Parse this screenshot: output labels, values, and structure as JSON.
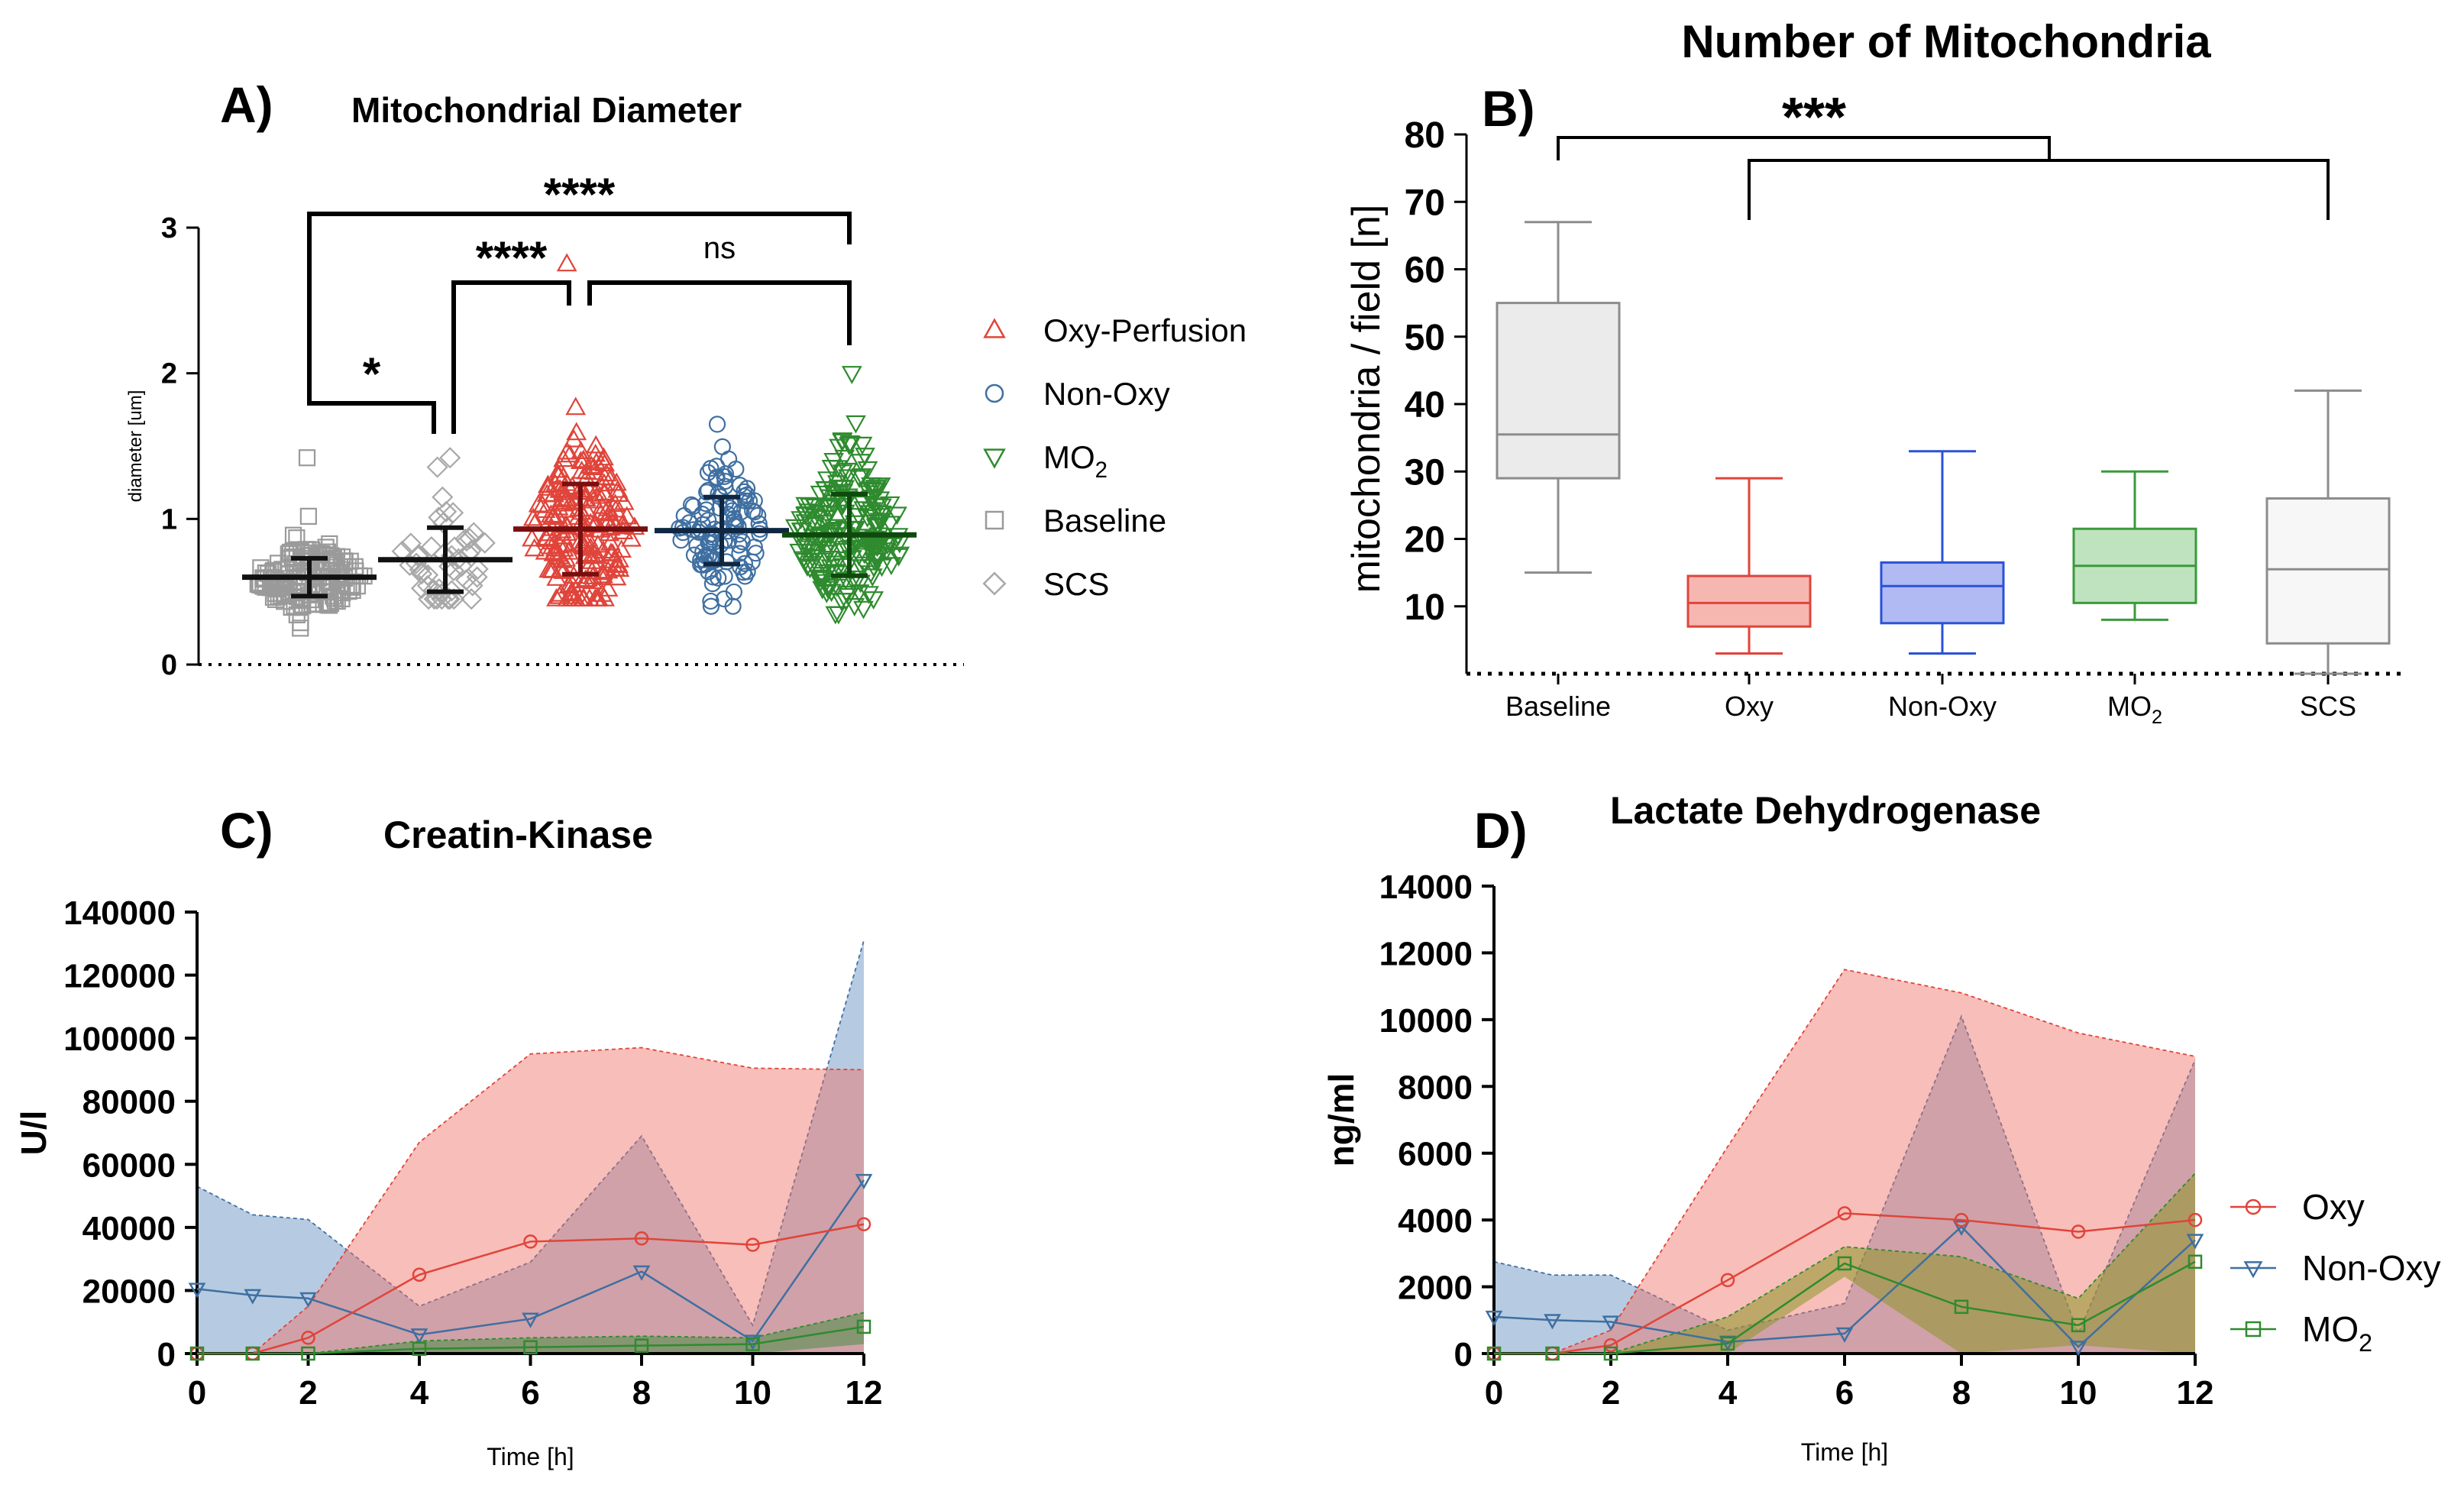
{
  "chart_data": [
    {
      "panel": "A)",
      "type": "scatter",
      "title": "Mitochondrial Diameter",
      "ylabel": "diameter [um]",
      "xlabel": "",
      "ylim": [
        0,
        3
      ],
      "yticks": [
        "0",
        "1",
        "2",
        "3"
      ],
      "groups": [
        {
          "name": "Baseline",
          "color": "#9a9a9a",
          "marker": "square",
          "mean": 0.6,
          "sd": 0.13,
          "min": 0.25,
          "max": 1.42,
          "n": 160
        },
        {
          "name": "SCS",
          "color": "#a8a8a8",
          "marker": "diamond",
          "mean": 0.72,
          "sd": 0.22,
          "min": 0.45,
          "max": 1.42,
          "n": 50
        },
        {
          "name": "Oxy-Perfusion",
          "color": "#e0443a",
          "marker": "triangle-up",
          "mean": 0.93,
          "sd": 0.31,
          "min": 0.45,
          "max": 2.75,
          "n": 200
        },
        {
          "name": "Non-Oxy",
          "color": "#3f6fa1",
          "marker": "circle",
          "mean": 0.92,
          "sd": 0.23,
          "min": 0.4,
          "max": 1.65,
          "n": 110
        },
        {
          "name": "MO2",
          "color": "#2e8b2e",
          "marker": "triangle-down",
          "mean": 0.89,
          "sd": 0.28,
          "min": 0.35,
          "max": 2.0,
          "n": 220
        }
      ],
      "legend": {
        "position": "right",
        "entries": [
          {
            "label": "Oxy-Perfusion",
            "sub": "",
            "color": "#e0443a",
            "marker": "triangle-up"
          },
          {
            "label": "Non-Oxy",
            "sub": "",
            "color": "#3f6fa1",
            "marker": "circle"
          },
          {
            "label": "MO",
            "sub": "2",
            "color": "#2e8b2e",
            "marker": "triangle-down"
          },
          {
            "label": "Baseline",
            "sub": "",
            "color": "#9a9a9a",
            "marker": "square"
          },
          {
            "label": "SCS",
            "sub": "",
            "color": "#a8a8a8",
            "marker": "diamond"
          }
        ]
      },
      "significance": [
        {
          "from": 0,
          "to": 1,
          "label": "*"
        },
        {
          "from": 1,
          "to": 2,
          "label": "****"
        },
        {
          "from": 2,
          "to": 4,
          "label": "ns"
        },
        {
          "from": 0,
          "to": 4,
          "label": "****"
        }
      ]
    },
    {
      "panel": "B)",
      "type": "box",
      "title": "Number of Mitochondria",
      "ylabel": "mitochondria / field [n]",
      "xlabel": "",
      "ylim": [
        0,
        80
      ],
      "yticks": [
        "10",
        "20",
        "30",
        "40",
        "50",
        "60",
        "70",
        "80"
      ],
      "categories": [
        {
          "label": "Baseline",
          "sub": ""
        },
        {
          "label": "Oxy",
          "sub": ""
        },
        {
          "label": "Non-Oxy",
          "sub": ""
        },
        {
          "label": "MO",
          "sub": "2"
        },
        {
          "label": "SCS",
          "sub": ""
        }
      ],
      "boxes": [
        {
          "min": 15,
          "q1": 29,
          "median": 35.5,
          "q3": 55,
          "max": 67,
          "stroke": "#8c8c8c",
          "fill": "#ebebeb"
        },
        {
          "min": 3,
          "q1": 7,
          "median": 10.5,
          "q3": 14.5,
          "max": 29,
          "stroke": "#e0443a",
          "fill": "#f6b7b1"
        },
        {
          "min": 3,
          "q1": 7.5,
          "median": 13,
          "q3": 16.5,
          "max": 33,
          "stroke": "#2a52d6",
          "fill": "#b1baf2"
        },
        {
          "min": 8,
          "q1": 10.5,
          "median": 16,
          "q3": 21.5,
          "max": 30,
          "stroke": "#3b9a3b",
          "fill": "#bfe3bf"
        },
        {
          "min": 0,
          "q1": 4.5,
          "median": 15.5,
          "q3": 26,
          "max": 42,
          "stroke": "#8c8c8c",
          "fill": "#f7f7f7"
        }
      ],
      "significance": [
        {
          "from": 0,
          "to_group": [
            1,
            4
          ],
          "label": "***"
        }
      ]
    },
    {
      "panel": "C)",
      "type": "line",
      "title": "Creatin-Kinase",
      "xlabel": "Time [h]",
      "ylabel": "U/l",
      "x": [
        0,
        1,
        2,
        4,
        6,
        8,
        10,
        12
      ],
      "xticks": [
        "0",
        "2",
        "4",
        "6",
        "8",
        "10",
        "12"
      ],
      "xlim": [
        0,
        12
      ],
      "ylim": [
        0,
        140000
      ],
      "yticks": [
        "0",
        "20000",
        "40000",
        "60000",
        "80000",
        "100000",
        "120000",
        "140000"
      ],
      "series": [
        {
          "name": "Non-Oxy",
          "color": "#3f6fa1",
          "fill": "rgba(94,139,189,0.45)",
          "marker": "triangle-down",
          "values": [
            20500,
            18500,
            17500,
            6000,
            11000,
            26000,
            4000,
            55000
          ],
          "upper": [
            53000,
            44000,
            42500,
            15000,
            29000,
            69000,
            9000,
            131000
          ],
          "lower": [
            0,
            0,
            0,
            0,
            0,
            0,
            0,
            0
          ]
        },
        {
          "name": "Oxy",
          "color": "#e0443a",
          "fill": "rgba(240,110,100,0.45)",
          "marker": "circle",
          "values": [
            0,
            0,
            5000,
            25000,
            35500,
            36500,
            34500,
            41000
          ],
          "upper": [
            0,
            0,
            15000,
            67000,
            95000,
            97000,
            90500,
            90000
          ],
          "lower": [
            0,
            0,
            0,
            0,
            0,
            0,
            0,
            0
          ]
        },
        {
          "name": "MO2",
          "color": "#2e8b2e",
          "fill": "rgba(60,140,60,0.5)",
          "marker": "square",
          "values": [
            0,
            0,
            0,
            1500,
            2000,
            2500,
            3000,
            8500
          ],
          "upper": [
            0,
            0,
            0,
            4000,
            5000,
            5500,
            5000,
            13000
          ],
          "lower": [
            0,
            0,
            0,
            0,
            0,
            0,
            0,
            3000
          ]
        }
      ]
    },
    {
      "panel": "D)",
      "type": "line",
      "title": "Lactate Dehydrogenase",
      "xlabel": "Time [h]",
      "ylabel": "ng/ml",
      "x": [
        0,
        1,
        2,
        4,
        6,
        8,
        10,
        12
      ],
      "xticks": [
        "0",
        "2",
        "4",
        "6",
        "8",
        "10",
        "12"
      ],
      "xlim": [
        0,
        12
      ],
      "ylim": [
        0,
        14000
      ],
      "yticks": [
        "0",
        "2000",
        "4000",
        "6000",
        "8000",
        "10000",
        "12000",
        "14000"
      ],
      "series": [
        {
          "name": "Non-Oxy",
          "color": "#3f6fa1",
          "fill": "rgba(94,139,189,0.45)",
          "marker": "triangle-down",
          "values": [
            1100,
            1000,
            950,
            350,
            600,
            3800,
            200,
            3400
          ],
          "upper": [
            2750,
            2350,
            2350,
            700,
            1500,
            10100,
            600,
            8800
          ],
          "lower": [
            0,
            0,
            0,
            0,
            0,
            0,
            0,
            0
          ]
        },
        {
          "name": "Oxy",
          "color": "#e0443a",
          "fill": "rgba(240,110,100,0.45)",
          "marker": "circle",
          "values": [
            0,
            0,
            250,
            2200,
            4200,
            4000,
            3650,
            4000
          ],
          "upper": [
            0,
            0,
            700,
            6200,
            11500,
            10800,
            9600,
            8900
          ],
          "lower": [
            0,
            0,
            0,
            0,
            0,
            0,
            0,
            0
          ]
        },
        {
          "name": "MO2",
          "color": "#2e8b2e",
          "fill": "rgba(140,150,40,0.55)",
          "marker": "square",
          "values": [
            0,
            0,
            0,
            300,
            2700,
            1400,
            850,
            2750
          ],
          "upper": [
            0,
            0,
            0,
            1100,
            3200,
            2900,
            1650,
            5400
          ],
          "lower": [
            0,
            0,
            0,
            0,
            2300,
            0,
            250,
            0
          ]
        }
      ],
      "legend": {
        "position": "right",
        "entries": [
          {
            "label": "Oxy",
            "sub": "",
            "color": "#e0443a",
            "marker": "circle"
          },
          {
            "label": "Non-Oxy",
            "sub": "",
            "color": "#3f6fa1",
            "marker": "triangle-down"
          },
          {
            "label": "MO",
            "sub": "2",
            "color": "#2e8b2e",
            "marker": "square"
          }
        ]
      }
    }
  ]
}
